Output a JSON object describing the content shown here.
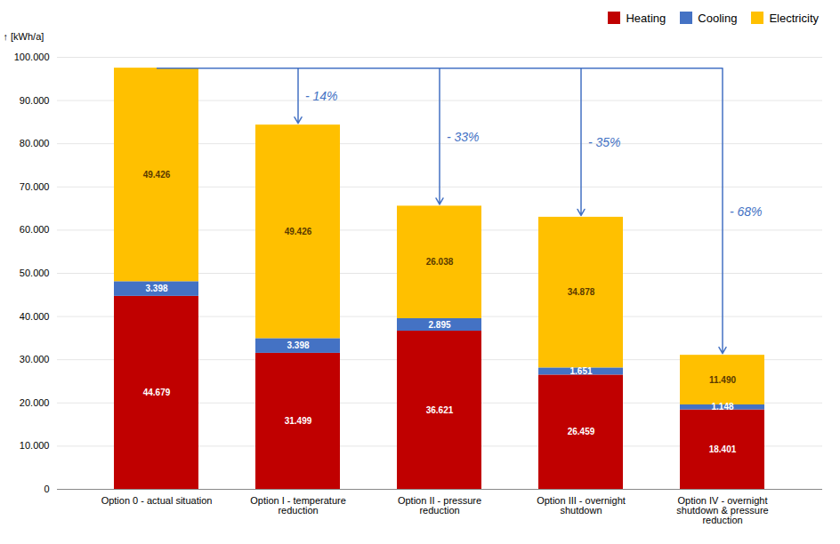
{
  "chart_data": {
    "type": "bar",
    "stacked": true,
    "categories": [
      "Option 0 - actual situation",
      "Option I - temperature\nreduction",
      "Option II - pressure\nreduction",
      "Option III - overnight\nshutdown",
      "Option IV - overnight\nshutdown & pressure\nreduction"
    ],
    "series": [
      {
        "name": "Heating",
        "color": "#C00000",
        "values": [
          44679,
          31499,
          36621,
          26459,
          18401
        ],
        "value_labels": [
          "44.679",
          "31.499",
          "36.621",
          "26.459",
          "18.401"
        ]
      },
      {
        "name": "Cooling",
        "color": "#4472C4",
        "values": [
          3398,
          3398,
          2895,
          1651,
          1148
        ],
        "value_labels": [
          "3.398",
          "3.398",
          "2.895",
          "1.651",
          "1.148"
        ]
      },
      {
        "name": "Electricity",
        "color": "#FFC000",
        "values": [
          49426,
          49426,
          26038,
          34878,
          11490
        ],
        "value_labels": [
          "49.426",
          "49.426",
          "26.038",
          "34.878",
          "11.490"
        ]
      }
    ],
    "ylabel": "[kWh/a]",
    "ylim": [
      0,
      100000
    ],
    "yticks": [
      0,
      {
        "value": 10000,
        "label": "10.000"
      },
      {
        "value": 20000,
        "label": "20.000"
      },
      {
        "value": 30000,
        "label": "30.000"
      },
      {
        "value": 40000,
        "label": "40.000"
      },
      {
        "value": 50000,
        "label": "50.000"
      },
      {
        "value": 60000,
        "label": "60.000"
      },
      {
        "value": 70000,
        "label": "70.000"
      },
      {
        "value": 80000,
        "label": "80.000"
      },
      {
        "value": 90000,
        "label": "90.000"
      },
      {
        "value": 100000,
        "label": "100.000"
      }
    ],
    "grid": true,
    "legend": "upper right",
    "data_labels": true,
    "annotations": [
      {
        "text": "- 14%",
        "color": "#4472C4"
      },
      {
        "text": "- 33%",
        "color": "#4472C4"
      },
      {
        "text": "- 35%",
        "color": "#4472C4"
      },
      {
        "text": "- 68%",
        "color": "#4472C4"
      }
    ]
  }
}
